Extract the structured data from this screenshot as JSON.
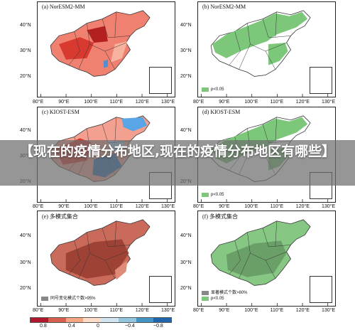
{
  "banner": {
    "text": "【现在的疫情分布地区,现在的疫情分布地区有哪些】"
  },
  "panels": [
    {
      "id": "a",
      "title": "(a) NorESM2-MM",
      "kind": "heat"
    },
    {
      "id": "b",
      "title": "(b) NorESM2-MM",
      "kind": "sig",
      "legend": [
        {
          "color": "#7cc77a",
          "label": "p<0.05"
        }
      ]
    },
    {
      "id": "c",
      "title": "(c) KIOST-ESM",
      "kind": "mixed"
    },
    {
      "id": "d",
      "title": "(d) KIOST-ESM",
      "kind": "sig",
      "legend": [
        {
          "color": "#7cc77a",
          "label": "p<0.05"
        }
      ]
    },
    {
      "id": "e",
      "title": "(e) 多模式集合",
      "kind": "ensemble",
      "legend": [
        {
          "color": "#888888",
          "label": "同号变化模式个数>95%"
        }
      ]
    },
    {
      "id": "f",
      "title": "(f) 多模式集合",
      "kind": "ensemble-sig",
      "legend": [
        {
          "color": "#888888",
          "label": "显著模式个数>80%"
        },
        {
          "color": "#7cc77a",
          "label": "p<0.05"
        }
      ]
    }
  ],
  "axes": {
    "lat_ticks": [
      "40°N",
      "30°N",
      "20°N"
    ],
    "lon_ticks": [
      "80°E",
      "90°E",
      "100°E",
      "110°E",
      "120°E",
      "130°E"
    ]
  },
  "colorbar": {
    "colors": [
      "#b2182b",
      "#d6604d",
      "#f4a582",
      "#fddbc7",
      "#d1e5f0",
      "#92c5de",
      "#4393c3",
      "#2166ac"
    ],
    "ticks": [
      "0.8",
      "0.4",
      "0",
      "−0.4",
      "−0.8"
    ]
  }
}
